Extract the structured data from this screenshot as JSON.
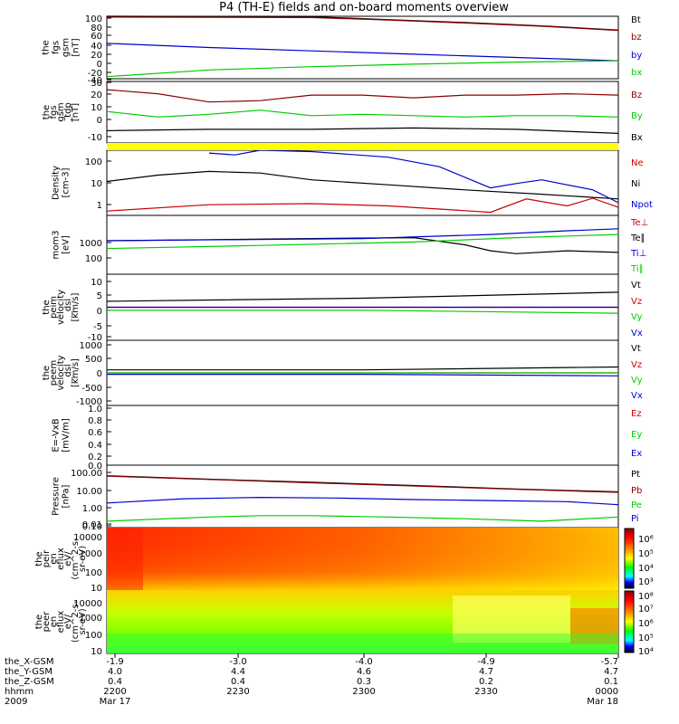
{
  "title": "P4 (TH-E) fields and on-board moments overview",
  "colors": {
    "black": "#000000",
    "red": "#cc0000",
    "darkred": "#8b0000",
    "green": "#00cc00",
    "blue": "#0000cc",
    "yellow": "#ffff00"
  },
  "footer": {
    "row_labels": [
      "the_X-GSM",
      "the_Y-GSM",
      "the_Z-GSM",
      "hhmm",
      "2009"
    ],
    "columns": [
      [
        "-1.9",
        "4.0",
        "0.4",
        "2200",
        "Mar 17"
      ],
      [
        "-3.0",
        "4.4",
        "0.4",
        "2230",
        ""
      ],
      [
        "-4.0",
        "4.6",
        "0.3",
        "2300",
        ""
      ],
      [
        "-4.9",
        "4.7",
        "0.2",
        "2330",
        ""
      ],
      [
        "-5.7",
        "4.7",
        "0.1",
        "0000",
        "Mar 18"
      ]
    ]
  },
  "chart_data": [
    {
      "type": "line",
      "ylabel": [
        "the",
        "fgs",
        "gsm",
        "[nT]"
      ],
      "yticks": [
        "100",
        "80",
        "60",
        "40",
        "20",
        "0",
        "-20",
        "-40"
      ],
      "yticks_raw": [
        100,
        80,
        60,
        40,
        20,
        0,
        -20,
        -40
      ],
      "ylim": [
        -45,
        105
      ],
      "series": [
        {
          "name": "Bt",
          "color": "black",
          "x": [
            0,
            40,
            55,
            70,
            85,
            100
          ],
          "y": [
            105,
            104,
            97,
            90,
            82,
            72
          ]
        },
        {
          "name": "bz",
          "color": "darkred",
          "x": [
            0,
            40,
            55,
            70,
            85,
            100
          ],
          "y": [
            103,
            102,
            96,
            89,
            81,
            71
          ]
        },
        {
          "name": "by",
          "color": "blue",
          "x": [
            0,
            20,
            40,
            60,
            80,
            100
          ],
          "y": [
            40,
            30,
            22,
            14,
            6,
            -2
          ]
        },
        {
          "name": "bx",
          "color": "green",
          "x": [
            0,
            20,
            40,
            60,
            80,
            100
          ],
          "y": [
            -40,
            -24,
            -16,
            -10,
            -5,
            -2
          ]
        }
      ]
    },
    {
      "type": "line",
      "ylabel": [
        "the",
        "fgs",
        "gsm",
        "_tdp",
        "[nT]"
      ],
      "yticks": [
        "30",
        "20",
        "10",
        "0",
        "-10"
      ],
      "yticks_raw": [
        30,
        20,
        10,
        0,
        -10
      ],
      "ylim": [
        -15,
        30
      ],
      "series": [
        {
          "name": "Bz",
          "color": "darkred",
          "x": [
            0,
            10,
            20,
            30,
            40,
            50,
            60,
            70,
            80,
            90,
            100
          ],
          "y": [
            24,
            21,
            15,
            16,
            20,
            20,
            18,
            20,
            20,
            21,
            20
          ]
        },
        {
          "name": "By",
          "color": "green",
          "x": [
            0,
            10,
            20,
            30,
            40,
            50,
            60,
            70,
            80,
            90,
            100
          ],
          "y": [
            8,
            4,
            6,
            9,
            5,
            6,
            5,
            4,
            5,
            5,
            4
          ]
        },
        {
          "name": "Bx",
          "color": "black",
          "x": [
            0,
            20,
            40,
            60,
            80,
            100
          ],
          "y": [
            -6,
            -5,
            -5,
            -4,
            -5,
            -8
          ]
        }
      ]
    },
    {
      "type": "line",
      "ylabel": [
        "Density",
        "[cm-3]"
      ],
      "yticks": [
        "100",
        "10",
        "1"
      ],
      "yticks_raw": [
        100,
        10,
        1
      ],
      "ylim": [
        0.25,
        300
      ],
      "log": true,
      "series": [
        {
          "name": "Ne",
          "color": "red",
          "x": [
            0,
            20,
            40,
            55,
            65,
            75,
            82,
            90,
            95,
            100
          ],
          "y": [
            0.4,
            0.8,
            0.9,
            0.7,
            0.5,
            0.35,
            1.5,
            0.7,
            1.6,
            0.6
          ]
        },
        {
          "name": "Ni",
          "color": "black",
          "x": [
            0,
            10,
            20,
            30,
            40,
            55,
            70,
            85,
            100
          ],
          "y": [
            10,
            20,
            30,
            25,
            12,
            7,
            4,
            2.5,
            1.5
          ]
        },
        {
          "name": "Npot",
          "color": "blue",
          "x": [
            20,
            25,
            30,
            40,
            55,
            65,
            75,
            80,
            85,
            95,
            100
          ],
          "y": [
            220,
            180,
            300,
            260,
            140,
            50,
            5,
            8,
            12,
            4,
            1
          ]
        },
        {
          "name": "Te⊥",
          "color": "red",
          "x": [],
          "y": []
        }
      ]
    },
    {
      "type": "line",
      "ylabel": [
        "mom3",
        "[eV]"
      ],
      "yticks": [
        "1000",
        "100"
      ],
      "yticks_raw": [
        1000,
        100
      ],
      "ylim": [
        40,
        4000
      ],
      "log": true,
      "series": [
        {
          "name": "Te∥",
          "color": "black",
          "x": [
            0,
            20,
            40,
            60,
            70,
            75,
            80,
            90,
            100
          ],
          "y": [
            550,
            600,
            650,
            700,
            400,
            250,
            200,
            250,
            220
          ]
        },
        {
          "name": "Ti⊥",
          "color": "blue",
          "x": [
            0,
            50,
            75,
            90,
            100
          ],
          "y": [
            550,
            650,
            900,
            1200,
            1400
          ]
        },
        {
          "name": "Ti∥",
          "color": "green",
          "x": [
            0,
            30,
            60,
            80,
            100
          ],
          "y": [
            300,
            380,
            500,
            700,
            900
          ]
        }
      ]
    },
    {
      "type": "line",
      "ylabel": [
        "the",
        "peim",
        "velocity",
        "_dsl",
        "[km/s]"
      ],
      "yticks": [
        "10",
        "5",
        "0",
        "-5",
        "-10"
      ],
      "yticks_raw": [
        10,
        5,
        0,
        -5,
        -10
      ],
      "ylim": [
        -11,
        11
      ],
      "series": [
        {
          "name": "Vt",
          "color": "black",
          "x": [
            0,
            50,
            100
          ],
          "y": [
            2,
            3,
            5
          ]
        },
        {
          "name": "Vz",
          "color": "red",
          "x": [
            0,
            50,
            100
          ],
          "y": [
            0,
            0,
            0
          ]
        },
        {
          "name": "Vy",
          "color": "green",
          "x": [
            0,
            50,
            100
          ],
          "y": [
            -1,
            -1,
            -2
          ]
        },
        {
          "name": "Vx",
          "color": "blue",
          "x": [
            0,
            50,
            100
          ],
          "y": [
            0,
            0,
            0
          ]
        }
      ]
    },
    {
      "type": "line",
      "ylabel": [
        "the",
        "peem",
        "velocity",
        "_dsl",
        "[km/s]"
      ],
      "yticks": [
        "1000",
        "500",
        "0",
        "-500",
        "-1000"
      ],
      "yticks_raw": [
        1000,
        500,
        0,
        -500,
        -1000
      ],
      "ylim": [
        -1100,
        1100
      ],
      "series": [
        {
          "name": "Vt",
          "color": "black",
          "x": [
            0,
            50,
            100
          ],
          "y": [
            100,
            100,
            200
          ]
        },
        {
          "name": "Vz",
          "color": "red",
          "x": [
            0,
            50,
            100
          ],
          "y": [
            0,
            0,
            0
          ]
        },
        {
          "name": "Vy",
          "color": "green",
          "x": [
            0,
            50,
            100
          ],
          "y": [
            0,
            0,
            0
          ]
        },
        {
          "name": "Vx",
          "color": "blue",
          "x": [
            0,
            50,
            100
          ],
          "y": [
            -50,
            -50,
            -100
          ]
        }
      ]
    },
    {
      "type": "line",
      "ylabel": [
        "E=-VxB",
        "[mV/m]"
      ],
      "yticks": [
        "1.0",
        "0.8",
        "0.6",
        "0.4",
        "0.2",
        "0.0"
      ],
      "yticks_raw": [
        1.0,
        0.8,
        0.6,
        0.4,
        0.2,
        0.0
      ],
      "ylim": [
        0,
        1
      ],
      "series": [
        {
          "name": "Ez",
          "color": "red",
          "x": [],
          "y": []
        },
        {
          "name": "Ey",
          "color": "green",
          "x": [],
          "y": []
        },
        {
          "name": "Ex",
          "color": "blue",
          "x": [],
          "y": []
        }
      ]
    },
    {
      "type": "line",
      "ylabel": [
        "Pressure",
        "[nPa]"
      ],
      "yticks": [
        "100.00",
        "10.00",
        "1.00",
        "0.10",
        "0.01"
      ],
      "yticks_raw": [
        100,
        10,
        1,
        0.1,
        0.01
      ],
      "ylim": [
        0.007,
        200
      ],
      "log": true,
      "series": [
        {
          "name": "Pt",
          "color": "black",
          "x": [
            0,
            20,
            40,
            60,
            80,
            100
          ],
          "y": [
            35,
            20,
            12,
            7,
            4,
            2.5
          ]
        },
        {
          "name": "Pb",
          "color": "darkred",
          "x": [
            0,
            20,
            40,
            60,
            80,
            100
          ],
          "y": [
            33,
            19,
            11,
            6.5,
            3.8,
            2.3
          ]
        },
        {
          "name": "Pe",
          "color": "green",
          "x": [
            0,
            20,
            30,
            40,
            55,
            70,
            85,
            100
          ],
          "y": [
            0.02,
            0.04,
            0.05,
            0.05,
            0.04,
            0.03,
            0.02,
            0.04
          ]
        },
        {
          "name": "Pi",
          "color": "blue",
          "x": [
            0,
            15,
            30,
            45,
            60,
            75,
            90,
            100
          ],
          "y": [
            0.4,
            0.8,
            1.0,
            0.9,
            0.7,
            0.6,
            0.5,
            0.3
          ]
        }
      ]
    },
    {
      "type": "heatmap",
      "ylabel": [
        "the",
        "peir",
        "en",
        "eflux",
        "eV/",
        "(cm^2-s-",
        "sr-eV)"
      ],
      "yticks": [
        "10000",
        "1000",
        "100",
        "10"
      ],
      "yticks_raw": [
        10000,
        1000,
        100,
        10
      ],
      "colorbar": [
        "10⁶",
        "10⁵",
        "10⁴",
        "10³"
      ]
    },
    {
      "type": "heatmap",
      "ylabel": [
        "the",
        "peer",
        "en",
        "eflux",
        "eV/",
        "(cm^2-s-",
        "sr-eV)"
      ],
      "yticks": [
        "10000",
        "1000",
        "100",
        "10"
      ],
      "yticks_raw": [
        10000,
        1000,
        100,
        10
      ],
      "colorbar": [
        "10⁸",
        "10⁷",
        "10⁶",
        "10⁵",
        "10⁴"
      ]
    }
  ]
}
